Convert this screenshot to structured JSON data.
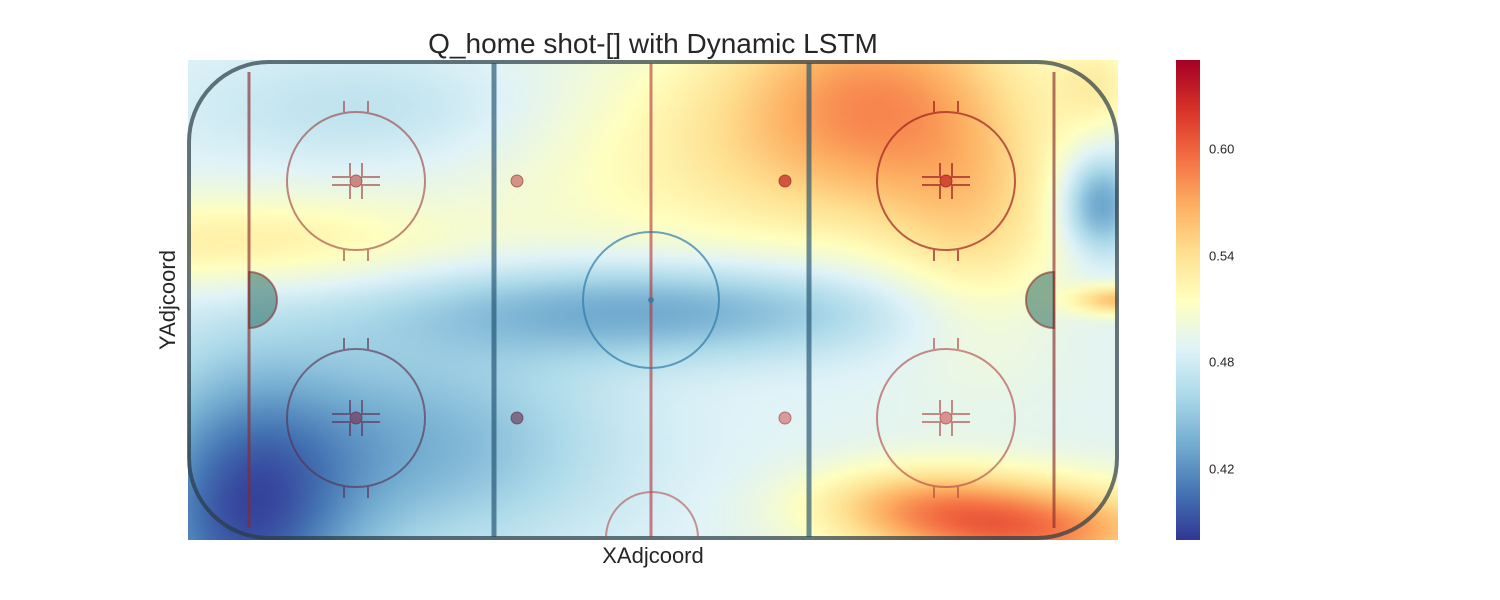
{
  "chart_data": {
    "type": "heatmap",
    "title": "Q_home shot-[] with Dynamic LSTM",
    "xlabel": "XAdjcoord",
    "ylabel": "YAdjcoord",
    "background": "hockey-rink",
    "colormap": [
      "#313695",
      "#4575b4",
      "#74add1",
      "#abd9e9",
      "#e0f3f8",
      "#ffffbf",
      "#fee090",
      "#fdae61",
      "#f46d43",
      "#d73027",
      "#a50026"
    ],
    "colorbar": {
      "range": [
        0.38,
        0.65
      ],
      "ticks": [
        {
          "value": 0.42,
          "label": "0.42"
        },
        {
          "value": 0.48,
          "label": "0.48"
        },
        {
          "value": 0.54,
          "label": "0.54"
        },
        {
          "value": 0.6,
          "label": "0.60"
        }
      ]
    },
    "grid": false,
    "legend": "none"
  }
}
